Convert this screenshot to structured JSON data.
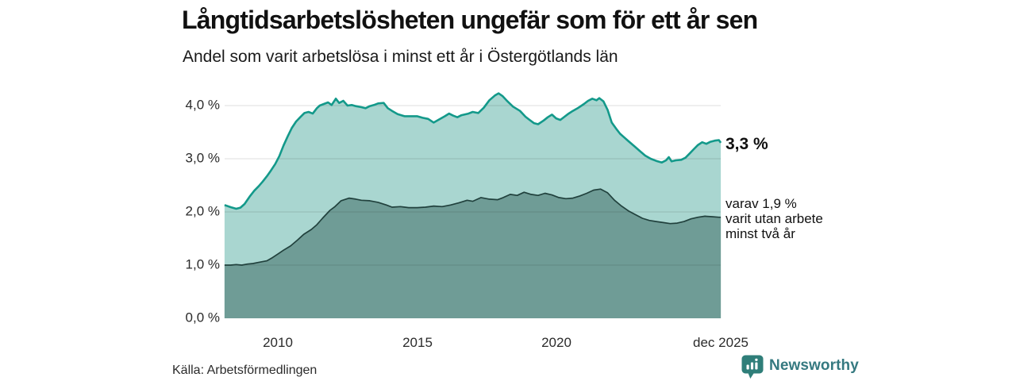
{
  "header": {
    "title": "Långtidsarbetslösheten ungefär som för ett år sen",
    "subtitle": "Andel som varit arbetslösa i minst ett år i Östergötlands län"
  },
  "footer": {
    "source": "Källa: Arbetsförmedlingen",
    "brand_name": "Newsworthy",
    "brand_icon": "bar-chart-badge-icon"
  },
  "annotations": {
    "total_value_label": "3,3 %",
    "sub_line1": "varav 1,9 %",
    "sub_line2": "varit utan arbete",
    "sub_line3": "minst två år"
  },
  "colors": {
    "total_line": "#13998a",
    "total_fill": "#a9d6d0",
    "subseries_line": "#21413d",
    "subseries_fill": "#6f9c96",
    "grid": "rgba(0,0,0,0.10)",
    "brand": "#2f7e79",
    "brand_text": "#357980"
  },
  "chart_data": {
    "type": "area",
    "title": "Långtidsarbetslösheten ungefär som för ett år sen",
    "subtitle": "Andel som varit arbetslösa i minst ett år i Östergötlands län",
    "xlabel": "",
    "ylabel": "",
    "grid": true,
    "legend_position": "end-of-line-labels",
    "xlim": [
      2008.083,
      2025.917
    ],
    "ylim": [
      0,
      4.4
    ],
    "y_ticks": [
      {
        "label": "4,0 %",
        "value": 4.0
      },
      {
        "label": "3,0 %",
        "value": 3.0
      },
      {
        "label": "2,0 %",
        "value": 2.0
      },
      {
        "label": "1,0 %",
        "value": 1.0
      },
      {
        "label": "0,0 %",
        "value": 0.0
      }
    ],
    "x_ticks": [
      {
        "label": "2010",
        "value": 2010
      },
      {
        "label": "2015",
        "value": 2015
      },
      {
        "label": "2020",
        "value": 2020
      },
      {
        "label": "dec 2025",
        "value": 2025.917
      }
    ],
    "series": [
      {
        "name": "Arbetslösa minst ett år",
        "end_label": "3,3 %",
        "end_value": 3.3,
        "line_color": "#13998a",
        "fill_color": "#a9d6d0",
        "points": [
          [
            2008.08,
            2.13
          ],
          [
            2008.3,
            2.09
          ],
          [
            2008.5,
            2.06
          ],
          [
            2008.65,
            2.08
          ],
          [
            2008.8,
            2.15
          ],
          [
            2009.0,
            2.3
          ],
          [
            2009.15,
            2.4
          ],
          [
            2009.3,
            2.48
          ],
          [
            2009.45,
            2.57
          ],
          [
            2009.6,
            2.67
          ],
          [
            2009.75,
            2.78
          ],
          [
            2009.9,
            2.9
          ],
          [
            2010.05,
            3.05
          ],
          [
            2010.2,
            3.25
          ],
          [
            2010.35,
            3.42
          ],
          [
            2010.5,
            3.58
          ],
          [
            2010.65,
            3.7
          ],
          [
            2010.8,
            3.78
          ],
          [
            2010.95,
            3.86
          ],
          [
            2011.1,
            3.88
          ],
          [
            2011.25,
            3.85
          ],
          [
            2011.4,
            3.95
          ],
          [
            2011.5,
            4.0
          ],
          [
            2011.65,
            4.03
          ],
          [
            2011.8,
            4.06
          ],
          [
            2011.93,
            4.01
          ],
          [
            2012.08,
            4.13
          ],
          [
            2012.2,
            4.05
          ],
          [
            2012.35,
            4.09
          ],
          [
            2012.5,
            4.0
          ],
          [
            2012.65,
            4.01
          ],
          [
            2012.8,
            3.99
          ],
          [
            2013.0,
            3.97
          ],
          [
            2013.15,
            3.95
          ],
          [
            2013.3,
            3.99
          ],
          [
            2013.45,
            4.01
          ],
          [
            2013.6,
            4.04
          ],
          [
            2013.8,
            4.05
          ],
          [
            2013.95,
            3.95
          ],
          [
            2014.1,
            3.9
          ],
          [
            2014.3,
            3.84
          ],
          [
            2014.55,
            3.8
          ],
          [
            2014.8,
            3.8
          ],
          [
            2015.0,
            3.8
          ],
          [
            2015.2,
            3.77
          ],
          [
            2015.4,
            3.75
          ],
          [
            2015.6,
            3.68
          ],
          [
            2015.8,
            3.74
          ],
          [
            2016.0,
            3.8
          ],
          [
            2016.15,
            3.85
          ],
          [
            2016.3,
            3.81
          ],
          [
            2016.45,
            3.78
          ],
          [
            2016.6,
            3.82
          ],
          [
            2016.85,
            3.85
          ],
          [
            2017.0,
            3.88
          ],
          [
            2017.2,
            3.86
          ],
          [
            2017.4,
            3.96
          ],
          [
            2017.6,
            4.1
          ],
          [
            2017.8,
            4.19
          ],
          [
            2017.93,
            4.23
          ],
          [
            2018.07,
            4.18
          ],
          [
            2018.25,
            4.08
          ],
          [
            2018.45,
            3.98
          ],
          [
            2018.7,
            3.9
          ],
          [
            2018.9,
            3.79
          ],
          [
            2019.05,
            3.73
          ],
          [
            2019.2,
            3.67
          ],
          [
            2019.35,
            3.65
          ],
          [
            2019.55,
            3.72
          ],
          [
            2019.7,
            3.78
          ],
          [
            2019.85,
            3.83
          ],
          [
            2020.0,
            3.76
          ],
          [
            2020.15,
            3.73
          ],
          [
            2020.3,
            3.79
          ],
          [
            2020.45,
            3.85
          ],
          [
            2020.6,
            3.9
          ],
          [
            2020.8,
            3.96
          ],
          [
            2021.0,
            4.03
          ],
          [
            2021.15,
            4.09
          ],
          [
            2021.3,
            4.13
          ],
          [
            2021.45,
            4.1
          ],
          [
            2021.55,
            4.14
          ],
          [
            2021.7,
            4.08
          ],
          [
            2021.85,
            3.92
          ],
          [
            2022.0,
            3.68
          ],
          [
            2022.15,
            3.57
          ],
          [
            2022.3,
            3.47
          ],
          [
            2022.45,
            3.4
          ],
          [
            2022.6,
            3.33
          ],
          [
            2022.8,
            3.24
          ],
          [
            2023.0,
            3.15
          ],
          [
            2023.2,
            3.06
          ],
          [
            2023.4,
            3.0
          ],
          [
            2023.6,
            2.96
          ],
          [
            2023.8,
            2.93
          ],
          [
            2023.95,
            2.97
          ],
          [
            2024.05,
            3.03
          ],
          [
            2024.15,
            2.95
          ],
          [
            2024.3,
            2.97
          ],
          [
            2024.5,
            2.98
          ],
          [
            2024.65,
            3.02
          ],
          [
            2024.8,
            3.1
          ],
          [
            2024.95,
            3.18
          ],
          [
            2025.1,
            3.26
          ],
          [
            2025.25,
            3.31
          ],
          [
            2025.4,
            3.28
          ],
          [
            2025.55,
            3.32
          ],
          [
            2025.7,
            3.34
          ],
          [
            2025.85,
            3.35
          ],
          [
            2025.92,
            3.3
          ]
        ]
      },
      {
        "name": "varav utan arbete minst två år",
        "end_label": "varav 1,9 % varit utan arbete minst två år",
        "end_value": 1.9,
        "line_color": "#21413d",
        "fill_color": "#6f9c96",
        "points": [
          [
            2008.08,
            1.0
          ],
          [
            2008.3,
            1.0
          ],
          [
            2008.5,
            1.01
          ],
          [
            2008.7,
            1.0
          ],
          [
            2008.9,
            1.02
          ],
          [
            2009.1,
            1.03
          ],
          [
            2009.3,
            1.05
          ],
          [
            2009.6,
            1.08
          ],
          [
            2009.8,
            1.14
          ],
          [
            2010.0,
            1.21
          ],
          [
            2010.2,
            1.28
          ],
          [
            2010.45,
            1.36
          ],
          [
            2010.7,
            1.47
          ],
          [
            2010.93,
            1.58
          ],
          [
            2011.2,
            1.67
          ],
          [
            2011.4,
            1.76
          ],
          [
            2011.6,
            1.88
          ],
          [
            2011.87,
            2.03
          ],
          [
            2012.05,
            2.1
          ],
          [
            2012.27,
            2.21
          ],
          [
            2012.56,
            2.26
          ],
          [
            2012.8,
            2.24
          ],
          [
            2013.0,
            2.22
          ],
          [
            2013.3,
            2.21
          ],
          [
            2013.6,
            2.18
          ],
          [
            2013.9,
            2.13
          ],
          [
            2014.1,
            2.09
          ],
          [
            2014.4,
            2.1
          ],
          [
            2014.7,
            2.08
          ],
          [
            2015.0,
            2.08
          ],
          [
            2015.3,
            2.09
          ],
          [
            2015.6,
            2.11
          ],
          [
            2015.9,
            2.1
          ],
          [
            2016.2,
            2.13
          ],
          [
            2016.5,
            2.17
          ],
          [
            2016.8,
            2.22
          ],
          [
            2017.0,
            2.2
          ],
          [
            2017.3,
            2.27
          ],
          [
            2017.6,
            2.24
          ],
          [
            2017.9,
            2.23
          ],
          [
            2018.1,
            2.27
          ],
          [
            2018.35,
            2.33
          ],
          [
            2018.6,
            2.31
          ],
          [
            2018.85,
            2.37
          ],
          [
            2019.1,
            2.33
          ],
          [
            2019.35,
            2.31
          ],
          [
            2019.6,
            2.35
          ],
          [
            2019.85,
            2.32
          ],
          [
            2020.1,
            2.27
          ],
          [
            2020.35,
            2.25
          ],
          [
            2020.6,
            2.26
          ],
          [
            2020.85,
            2.3
          ],
          [
            2021.1,
            2.35
          ],
          [
            2021.35,
            2.41
          ],
          [
            2021.6,
            2.43
          ],
          [
            2021.85,
            2.36
          ],
          [
            2022.1,
            2.22
          ],
          [
            2022.35,
            2.11
          ],
          [
            2022.6,
            2.02
          ],
          [
            2022.85,
            1.95
          ],
          [
            2023.1,
            1.88
          ],
          [
            2023.35,
            1.84
          ],
          [
            2023.6,
            1.82
          ],
          [
            2023.85,
            1.8
          ],
          [
            2024.1,
            1.78
          ],
          [
            2024.35,
            1.79
          ],
          [
            2024.6,
            1.82
          ],
          [
            2024.85,
            1.87
          ],
          [
            2025.1,
            1.9
          ],
          [
            2025.35,
            1.92
          ],
          [
            2025.6,
            1.91
          ],
          [
            2025.85,
            1.9
          ],
          [
            2025.92,
            1.9
          ]
        ]
      }
    ]
  }
}
